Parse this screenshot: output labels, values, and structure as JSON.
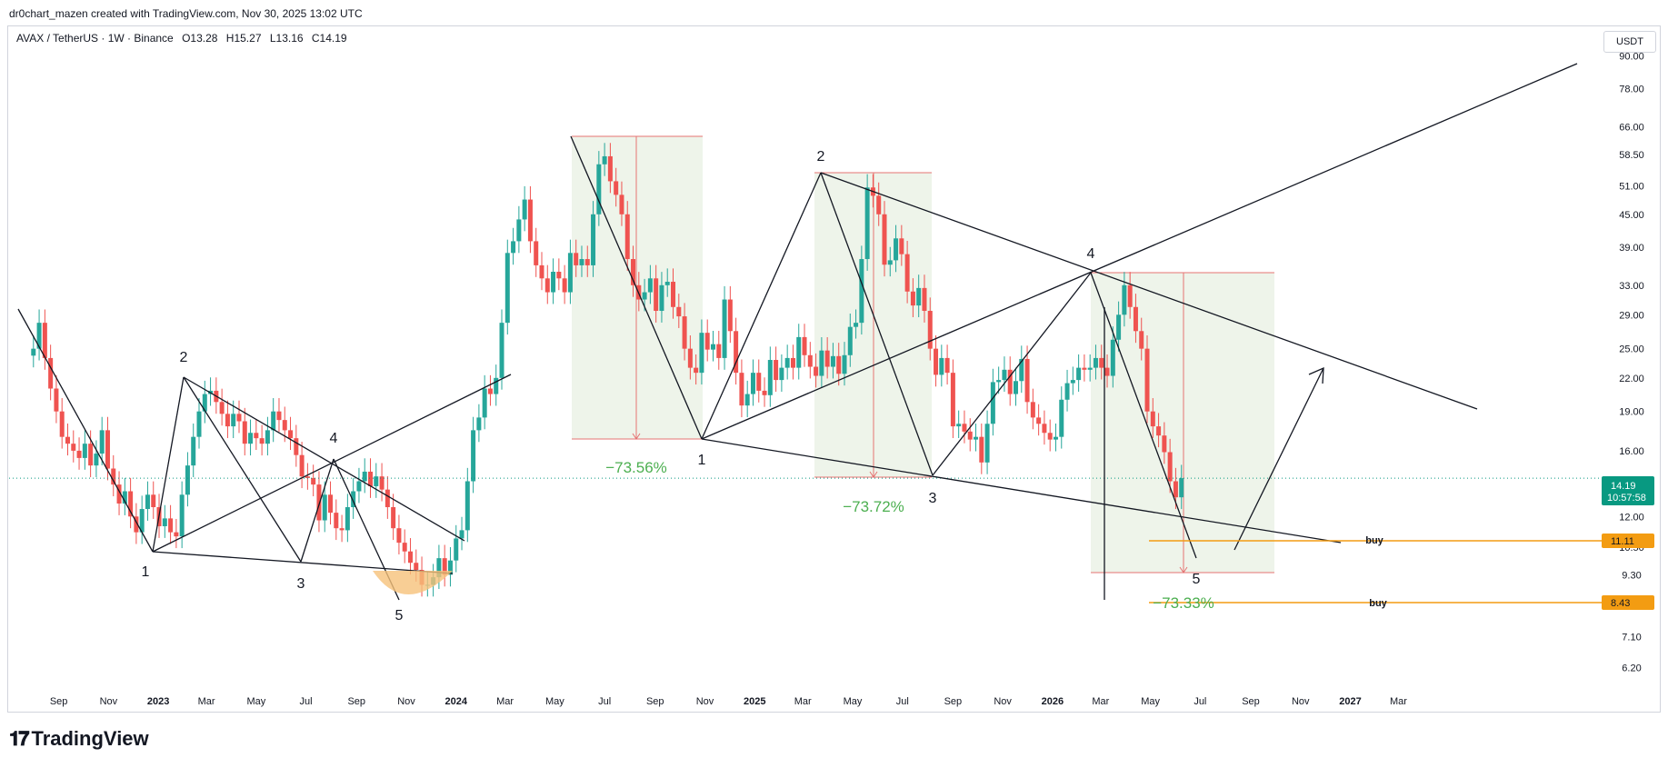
{
  "header": {
    "attribution": "dr0chart_mazen created with TradingView.com, Nov 30, 2025 13:02 UTC"
  },
  "legend": {
    "symbol": "AVAX / TetherUS · 1W · Binance",
    "open": "O13.28",
    "high": "H15.27",
    "low": "L13.16",
    "close": "C14.19"
  },
  "unit_button": "USDT",
  "footer": {
    "logo_text": "TradingView"
  },
  "colors": {
    "up": "#26a69a",
    "down": "#ef5350",
    "price_line": "#089981",
    "buy_line": "#f39c12",
    "box_fill": "#eef4ea",
    "box_border": "#e57373",
    "pct": "#4caf50"
  },
  "chart_data": {
    "type": "candlestick",
    "scale": "log",
    "ylim": [
      5.6,
      98
    ],
    "y_ticks": [
      6.2,
      7.1,
      8.1,
      9.3,
      10.5,
      12.0,
      16.0,
      19.0,
      22.0,
      25.0,
      29.0,
      33.0,
      39.0,
      45.0,
      51.0,
      58.5,
      66.0,
      78.0,
      90.0
    ],
    "y_tick_labels": [
      "6.20",
      "7.10",
      "8.10",
      "9.30",
      "10.50",
      "12.00",
      "16.00",
      "19.00",
      "22.00",
      "25.00",
      "29.00",
      "33.00",
      "39.00",
      "45.00",
      "51.00",
      "58.50",
      "66.00",
      "78.00",
      "90.00"
    ],
    "x_ticks": [
      {
        "label": "Sep",
        "d": "2022-09-01",
        "year": false
      },
      {
        "label": "Nov",
        "d": "2022-11-01",
        "year": false
      },
      {
        "label": "2023",
        "d": "2023-01-01",
        "year": true
      },
      {
        "label": "Mar",
        "d": "2023-03-01",
        "year": false
      },
      {
        "label": "May",
        "d": "2023-05-01",
        "year": false
      },
      {
        "label": "Jul",
        "d": "2023-07-01",
        "year": false
      },
      {
        "label": "Sep",
        "d": "2023-09-01",
        "year": false
      },
      {
        "label": "Nov",
        "d": "2023-11-01",
        "year": false
      },
      {
        "label": "2024",
        "d": "2024-01-01",
        "year": true
      },
      {
        "label": "Mar",
        "d": "2024-03-01",
        "year": false
      },
      {
        "label": "May",
        "d": "2024-05-01",
        "year": false
      },
      {
        "label": "Jul",
        "d": "2024-07-01",
        "year": false
      },
      {
        "label": "Sep",
        "d": "2024-09-01",
        "year": false
      },
      {
        "label": "Nov",
        "d": "2024-11-01",
        "year": false
      },
      {
        "label": "2025",
        "d": "2025-01-01",
        "year": true
      },
      {
        "label": "Mar",
        "d": "2025-03-01",
        "year": false
      },
      {
        "label": "May",
        "d": "2025-05-01",
        "year": false
      },
      {
        "label": "Jul",
        "d": "2025-07-01",
        "year": false
      },
      {
        "label": "Sep",
        "d": "2025-09-01",
        "year": false
      },
      {
        "label": "Nov",
        "d": "2025-11-01",
        "year": false
      },
      {
        "label": "2026",
        "d": "2026-01-01",
        "year": true
      },
      {
        "label": "Mar",
        "d": "2026-03-01",
        "year": false
      },
      {
        "label": "May",
        "d": "2026-05-01",
        "year": false
      },
      {
        "label": "Jul",
        "d": "2026-07-01",
        "year": false
      },
      {
        "label": "Sep",
        "d": "2026-09-01",
        "year": false
      },
      {
        "label": "Nov",
        "d": "2026-11-01",
        "year": false
      },
      {
        "label": "2027",
        "d": "2027-01-01",
        "year": true
      },
      {
        "label": "Mar",
        "d": "2027-03-01",
        "year": false
      }
    ],
    "first_candle": "2022-08-01",
    "candles_close": [
      25,
      28,
      24,
      21,
      19,
      17,
      16.5,
      16,
      15.5,
      16.5,
      15,
      15.8,
      17.5,
      14.8,
      13.8,
      12.7,
      13.4,
      12,
      11.2,
      12.4,
      13.2,
      12.5,
      11.5,
      11.9,
      11.2,
      11,
      13.2,
      15,
      17,
      19,
      20.5,
      20.8,
      19.8,
      18.8,
      17.8,
      18.8,
      18.2,
      16.5,
      17.3,
      16.9,
      16.5,
      17.5,
      19,
      18.3,
      17.5,
      16.9,
      15.7,
      14.3,
      14.2,
      13.8,
      11.8,
      13.2,
      12.2,
      11.4,
      11.3,
      12.5,
      13.4,
      14,
      14.6,
      13.7,
      14.3,
      13.5,
      12.5,
      11.4,
      10.7,
      10.3,
      9.8,
      9.5,
      8.9,
      8.9,
      9.2,
      10,
      9.3,
      9.9,
      10.9,
      11.3,
      14,
      17.5,
      18.5,
      21,
      20.5,
      22,
      28,
      38,
      40,
      44,
      48,
      40,
      36,
      34,
      32,
      35,
      34,
      32,
      38,
      36,
      37,
      36,
      45,
      56,
      58,
      52,
      49,
      45,
      37,
      33,
      31,
      32,
      34,
      29.5,
      33,
      33.5,
      30,
      28.8,
      25,
      23,
      22.5,
      26.8,
      24.9,
      25.5,
      24,
      31,
      27,
      22.5,
      19.5,
      20.5,
      22.5,
      20.8,
      20.4,
      23.8,
      21.8,
      23,
      24,
      23,
      26.3,
      24.3,
      23.1,
      22.2,
      24.8,
      23.1,
      24.2,
      22.4,
      24.3,
      27.5,
      28,
      37,
      50.6,
      48.8,
      45,
      36.1,
      36.8,
      40.5,
      37.8,
      32.1,
      30.2,
      32.6,
      29.5,
      25,
      22.3,
      24,
      22.5,
      17.8,
      18,
      17.4,
      16.8,
      17,
      15.2,
      18,
      21.6,
      21.8,
      22.8,
      20.5,
      21.7,
      23.9,
      19.8,
      18.5,
      18,
      17.3,
      16.8,
      17,
      20,
      21.5,
      21.8,
      23,
      22.8,
      23,
      24,
      23,
      22.2,
      26,
      29,
      33,
      30,
      27,
      25,
      19,
      17.8,
      17.1,
      15.9,
      14,
      13.05,
      14.19
    ]
  },
  "annotations": {
    "waves_left": [
      "1",
      "2",
      "3",
      "4",
      "5"
    ],
    "waves_mid": [
      "1",
      "2",
      "3"
    ],
    "waves_right": [
      "4",
      "5"
    ],
    "pct_1": "−73.56%",
    "pct_2": "−73.72%",
    "pct_3": "−73.33%",
    "buy_1": "buy",
    "buy_2": "buy"
  },
  "price_labels": {
    "current_price": "14.19",
    "countdown": "10:57:58",
    "buy_level_1": "11.11",
    "buy_level_2": "8.43"
  }
}
